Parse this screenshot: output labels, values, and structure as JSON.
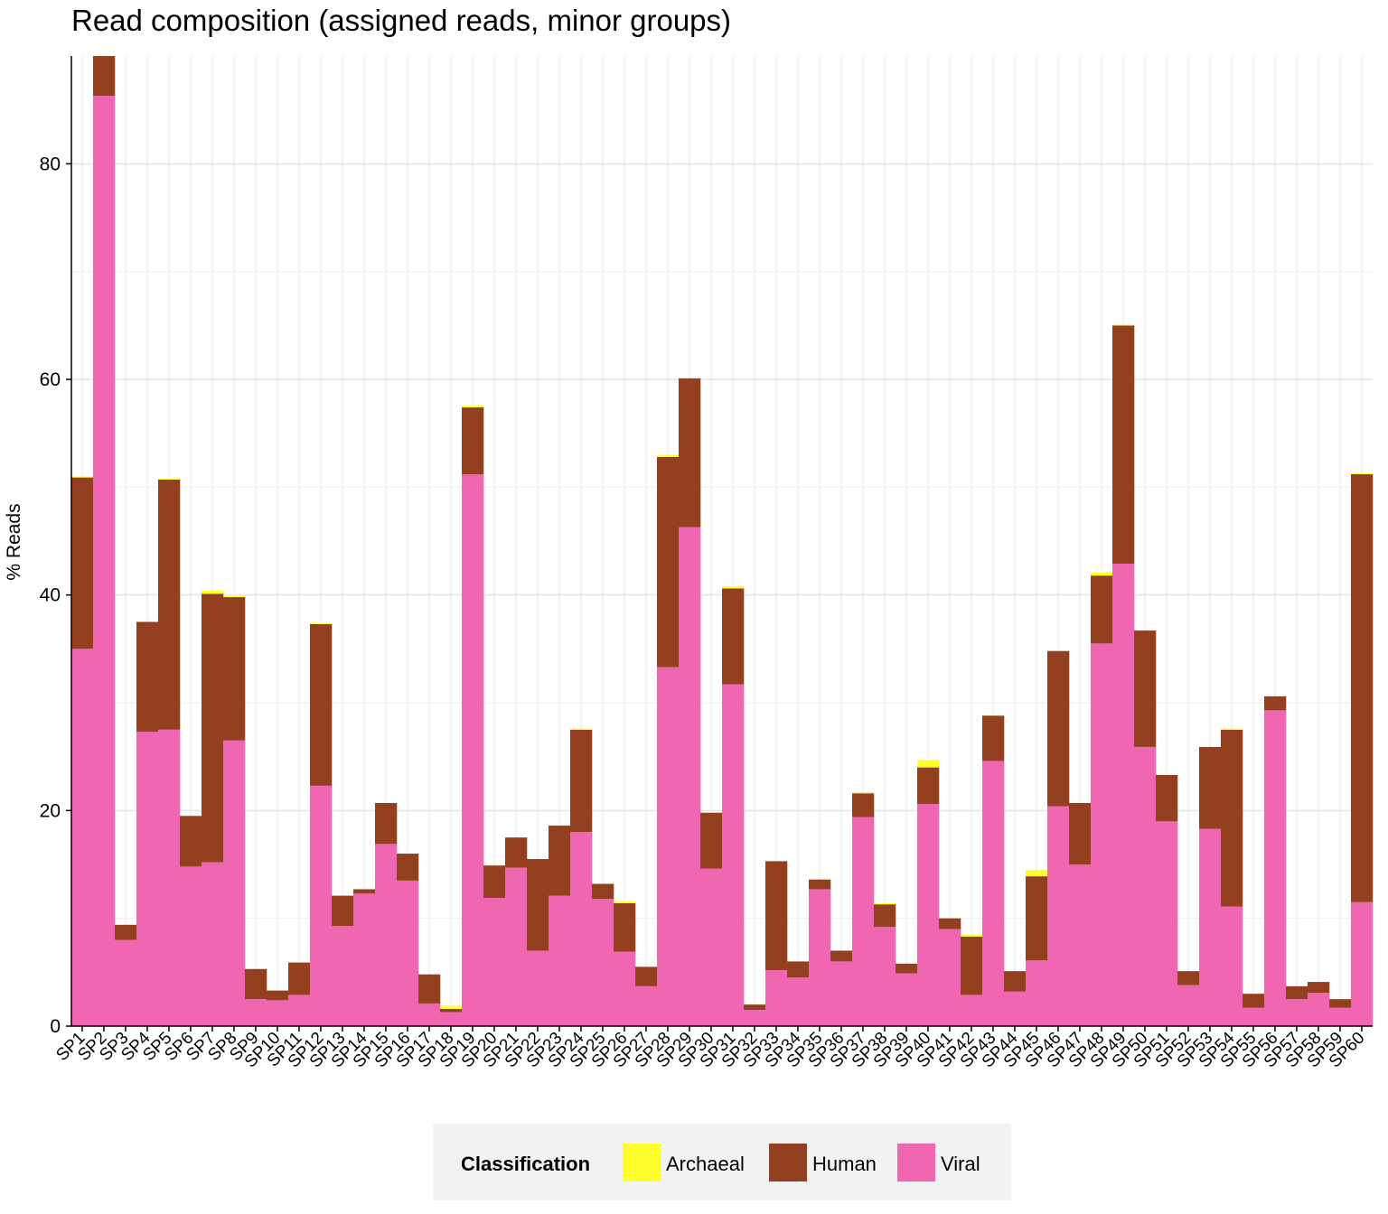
{
  "chart_data": {
    "type": "bar",
    "stacked": true,
    "title": "Read composition (assigned reads, minor groups)",
    "xlabel": "",
    "ylabel": "% Reads",
    "ylim": [
      0,
      90
    ],
    "yticks": [
      0,
      20,
      40,
      60,
      80
    ],
    "grid": true,
    "legend_position": "bottom",
    "legend_title": "Classification",
    "categories": [
      "SP1",
      "SP2",
      "SP3",
      "SP4",
      "SP5",
      "SP6",
      "SP7",
      "SP8",
      "SP9",
      "SP10",
      "SP11",
      "SP12",
      "SP13",
      "SP14",
      "SP15",
      "SP16",
      "SP17",
      "SP18",
      "SP19",
      "SP20",
      "SP21",
      "SP22",
      "SP23",
      "SP24",
      "SP25",
      "SP26",
      "SP27",
      "SP28",
      "SP29",
      "SP30",
      "SP31",
      "SP32",
      "SP33",
      "SP34",
      "SP35",
      "SP36",
      "SP37",
      "SP38",
      "SP39",
      "SP40",
      "SP41",
      "SP42",
      "SP43",
      "SP44",
      "SP45",
      "SP46",
      "SP47",
      "SP48",
      "SP49",
      "SP50",
      "SP51",
      "SP52",
      "SP53",
      "SP54",
      "SP55",
      "SP56",
      "SP57",
      "SP58",
      "SP59",
      "SP60"
    ],
    "series": [
      {
        "name": "Viral",
        "color": "#F066B0",
        "values": [
          35.0,
          86.3,
          8.0,
          27.3,
          27.5,
          14.8,
          15.2,
          26.5,
          2.5,
          2.4,
          2.9,
          22.3,
          9.3,
          12.3,
          16.9,
          13.5,
          2.1,
          1.3,
          51.2,
          11.9,
          14.7,
          7.0,
          12.1,
          18.0,
          11.8,
          6.9,
          3.7,
          33.3,
          46.3,
          14.6,
          31.7,
          1.5,
          5.2,
          4.5,
          12.7,
          6.0,
          19.4,
          9.2,
          4.9,
          20.6,
          9.0,
          2.9,
          24.6,
          3.2,
          6.1,
          20.4,
          15.0,
          35.5,
          42.9,
          25.9,
          19.0,
          3.8,
          18.3,
          11.1,
          1.7,
          29.3,
          2.5,
          3.1,
          1.7,
          11.5
        ]
      },
      {
        "name": "Human",
        "color": "#934021",
        "values": [
          15.9,
          3.7,
          1.4,
          10.2,
          23.2,
          4.7,
          24.9,
          13.3,
          2.8,
          0.9,
          3.0,
          15.0,
          2.8,
          0.4,
          3.8,
          2.5,
          2.7,
          0.3,
          6.2,
          3.0,
          2.8,
          8.5,
          6.5,
          9.5,
          1.4,
          4.5,
          1.8,
          19.5,
          13.8,
          5.2,
          8.9,
          0.5,
          10.1,
          1.5,
          0.9,
          1.0,
          2.2,
          2.1,
          0.9,
          3.4,
          1.0,
          5.4,
          4.2,
          1.9,
          7.8,
          14.4,
          5.7,
          6.3,
          22.1,
          10.8,
          4.3,
          1.3,
          7.6,
          16.4,
          1.3,
          1.3,
          1.2,
          1.0,
          0.8,
          39.7
        ]
      },
      {
        "name": "Archaeal",
        "color": "#FFFF2E",
        "values": [
          0.1,
          0.0,
          0.0,
          0.0,
          0.1,
          0.0,
          0.3,
          0.1,
          0.0,
          0.0,
          0.0,
          0.1,
          0.0,
          0.0,
          0.0,
          0.0,
          0.0,
          0.3,
          0.2,
          0.0,
          0.0,
          0.0,
          0.0,
          0.1,
          0.0,
          0.2,
          0.0,
          0.2,
          0.0,
          0.0,
          0.2,
          0.0,
          0.0,
          0.0,
          0.0,
          0.0,
          0.1,
          0.1,
          0.0,
          0.7,
          0.0,
          0.2,
          0.0,
          0.0,
          0.6,
          0.0,
          0.0,
          0.3,
          0.1,
          0.0,
          0.0,
          0.0,
          0.0,
          0.1,
          0.0,
          0.0,
          0.0,
          0.0,
          0.0,
          0.1
        ]
      }
    ],
    "legend_order": [
      "Archaeal",
      "Human",
      "Viral"
    ]
  }
}
